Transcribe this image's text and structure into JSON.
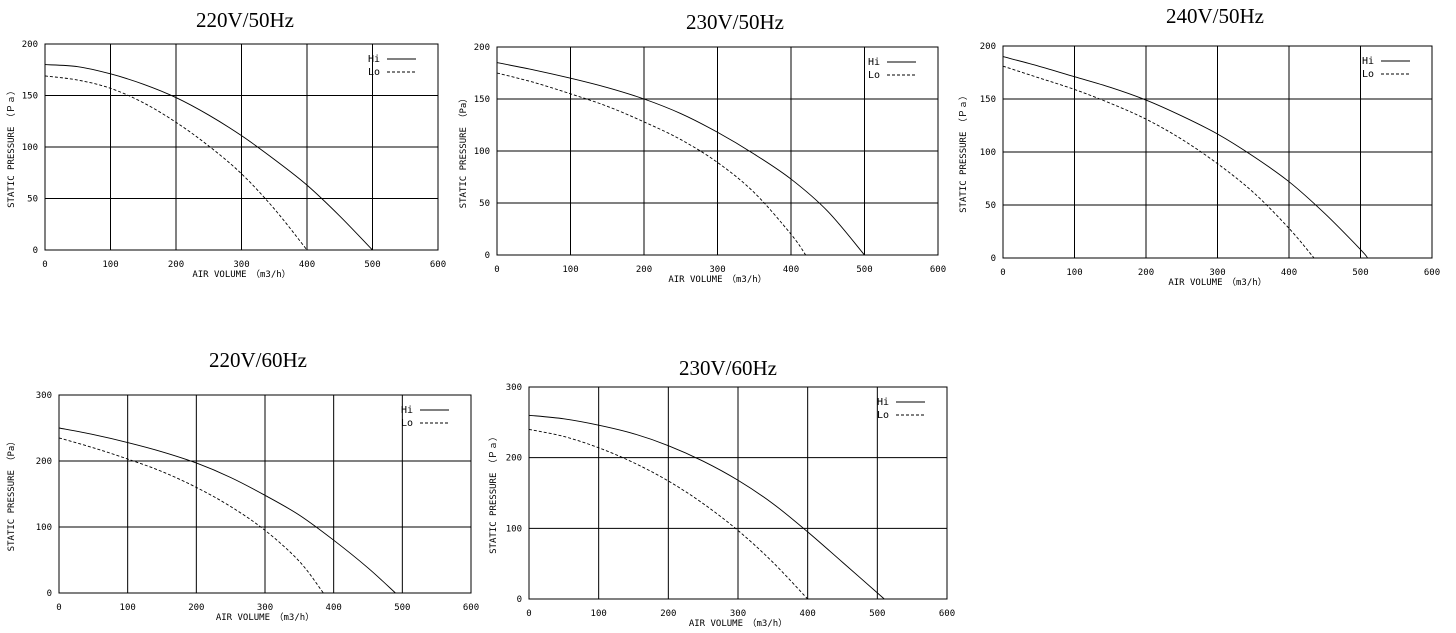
{
  "chart_data": [
    {
      "type": "line",
      "title": "220V/50Hz",
      "xlabel": "AIR VOLUME　（m3/h）",
      "ylabel": "STATIC PRESSURE　（Ｐａ）",
      "xlim": [
        0,
        600
      ],
      "ylim": [
        0,
        200
      ],
      "xticks": [
        0,
        100,
        200,
        300,
        400,
        500,
        600
      ],
      "yticks": [
        0,
        50,
        100,
        150,
        200
      ],
      "grid": true,
      "legend_position": "top-right",
      "series": [
        {
          "name": "Hi",
          "style": "solid",
          "x": [
            0,
            50,
            100,
            150,
            200,
            250,
            300,
            350,
            400,
            450,
            500
          ],
          "y": [
            180,
            178,
            171,
            161,
            148,
            131,
            111,
            88,
            63,
            33,
            0
          ]
        },
        {
          "name": "Lo",
          "style": "dashed",
          "x": [
            0,
            50,
            100,
            150,
            200,
            250,
            300,
            350,
            400
          ],
          "y": [
            169,
            165,
            157,
            143,
            124,
            101,
            74,
            40,
            0
          ]
        }
      ]
    },
    {
      "type": "line",
      "title": "230V/50Hz",
      "xlabel": "AIR VOLUME　（m3/h）",
      "ylabel": "STATIC PRESSURE　（Pa）",
      "xlim": [
        0,
        600
      ],
      "ylim": [
        0,
        200
      ],
      "xticks": [
        0,
        100,
        200,
        300,
        400,
        500,
        600
      ],
      "yticks": [
        0,
        50,
        100,
        150,
        200
      ],
      "grid": true,
      "legend_position": "top-right",
      "series": [
        {
          "name": "Hi",
          "style": "solid",
          "x": [
            0,
            50,
            100,
            150,
            200,
            250,
            300,
            350,
            400,
            450,
            500
          ],
          "y": [
            185,
            178,
            170,
            161,
            150,
            136,
            118,
            97,
            73,
            42,
            0
          ]
        },
        {
          "name": "Lo",
          "style": "dashed",
          "x": [
            0,
            50,
            100,
            150,
            200,
            250,
            300,
            350,
            400,
            420
          ],
          "y": [
            175,
            166,
            155,
            143,
            128,
            111,
            89,
            60,
            20,
            0
          ]
        }
      ]
    },
    {
      "type": "line",
      "title": "240V/50Hz",
      "xlabel": "AIR VOLUME　（m3/h）",
      "ylabel": "STATIC PRESSURE　（Ｐａ）",
      "xlim": [
        0,
        600
      ],
      "ylim": [
        0,
        200
      ],
      "xticks": [
        0,
        100,
        200,
        300,
        400,
        500,
        600
      ],
      "yticks": [
        0,
        50,
        100,
        150,
        200
      ],
      "grid": true,
      "legend_position": "top-right",
      "series": [
        {
          "name": "Hi",
          "style": "solid",
          "x": [
            0,
            50,
            100,
            150,
            200,
            250,
            300,
            350,
            400,
            450,
            500,
            510
          ],
          "y": [
            190,
            181,
            171,
            161,
            149,
            134,
            117,
            96,
            72,
            42,
            8,
            0
          ]
        },
        {
          "name": "Lo",
          "style": "dashed",
          "x": [
            0,
            50,
            100,
            150,
            200,
            250,
            300,
            350,
            400,
            435
          ],
          "y": [
            181,
            170,
            159,
            146,
            131,
            112,
            89,
            62,
            28,
            0
          ]
        }
      ]
    },
    {
      "type": "line",
      "title": "220V/60Hz",
      "xlabel": "AIR VOLUME　（m3/h）",
      "ylabel": "STATIC PRESSURE　（Pa）",
      "xlim": [
        0,
        600
      ],
      "ylim": [
        0,
        300
      ],
      "xticks": [
        0,
        100,
        200,
        300,
        400,
        500,
        600
      ],
      "yticks": [
        0,
        100,
        200,
        300
      ],
      "grid": true,
      "legend_position": "top-right",
      "series": [
        {
          "name": "Hi",
          "style": "solid",
          "x": [
            0,
            50,
            100,
            150,
            200,
            250,
            300,
            350,
            400,
            450,
            490
          ],
          "y": [
            250,
            240,
            228,
            214,
            197,
            175,
            148,
            118,
            80,
            38,
            0
          ]
        },
        {
          "name": "Lo",
          "style": "dashed",
          "x": [
            0,
            50,
            100,
            150,
            200,
            250,
            300,
            350,
            385
          ],
          "y": [
            235,
            220,
            203,
            184,
            160,
            131,
            95,
            48,
            0
          ]
        }
      ]
    },
    {
      "type": "line",
      "title": "230V/60Hz",
      "xlabel": "AIR VOLUME　（m3/h）",
      "ylabel": "STATIC PRESSURE　（Ｐａ）",
      "xlim": [
        0,
        600
      ],
      "ylim": [
        0,
        300
      ],
      "xticks": [
        0,
        100,
        200,
        300,
        400,
        500,
        600
      ],
      "yticks": [
        0,
        100,
        200,
        300
      ],
      "grid": true,
      "legend_position": "top-right",
      "series": [
        {
          "name": "Hi",
          "style": "solid",
          "x": [
            0,
            50,
            100,
            150,
            200,
            250,
            300,
            350,
            400,
            450,
            510
          ],
          "y": [
            260,
            255,
            246,
            234,
            217,
            195,
            168,
            135,
            95,
            52,
            0
          ]
        },
        {
          "name": "Lo",
          "style": "dashed",
          "x": [
            0,
            50,
            100,
            150,
            200,
            250,
            300,
            350,
            400
          ],
          "y": [
            240,
            230,
            214,
            193,
            167,
            135,
            97,
            52,
            0
          ]
        }
      ]
    }
  ]
}
